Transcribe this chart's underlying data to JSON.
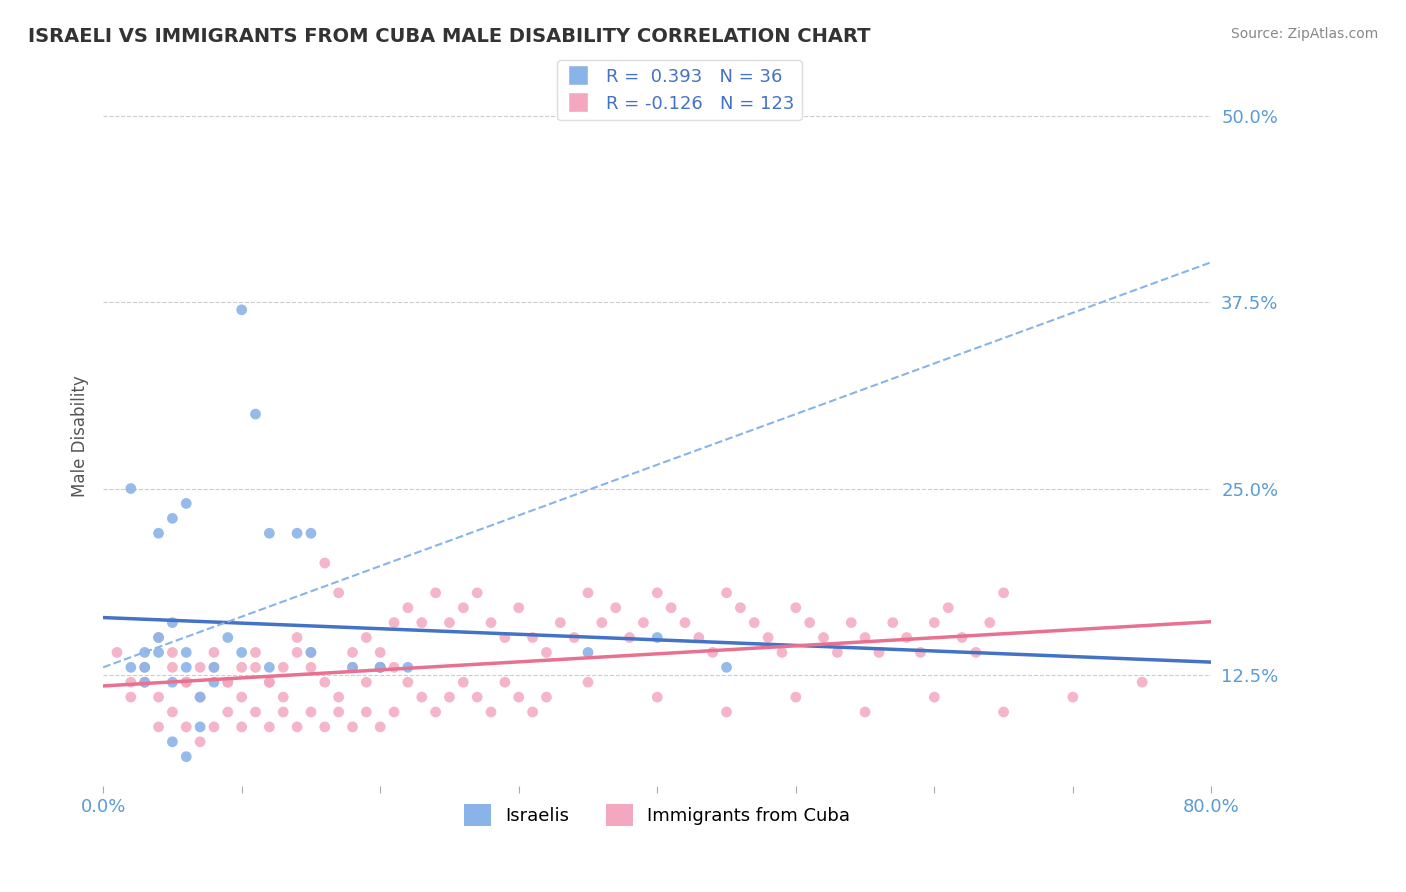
{
  "title": "ISRAELI VS IMMIGRANTS FROM CUBA MALE DISABILITY CORRELATION CHART",
  "source_text": "Source: ZipAtlas.com",
  "xlabel": "",
  "ylabel": "Male Disability",
  "legend_labels": [
    "Israelis",
    "Immigrants from Cuba"
  ],
  "r_israelis": 0.393,
  "n_israelis": 36,
  "r_cuba": -0.126,
  "n_cuba": 123,
  "color_israelis": "#8ab4e8",
  "color_cuba": "#f4a8c0",
  "line_color_israelis": "#4472c4",
  "line_color_cuba": "#e87090",
  "dashed_line_color": "#8ab4e8",
  "xlim": [
    0.0,
    0.8
  ],
  "ylim": [
    0.05,
    0.52
  ],
  "yticks": [
    0.125,
    0.25,
    0.375,
    0.5
  ],
  "ytick_labels": [
    "12.5%",
    "25.0%",
    "37.5%",
    "50.0%"
  ],
  "xticks": [
    0.0,
    0.1,
    0.2,
    0.3,
    0.4,
    0.5,
    0.6,
    0.7,
    0.8
  ],
  "xtick_labels": [
    "0.0%",
    "",
    "",
    "",
    "",
    "",
    "",
    "",
    "80.0%"
  ],
  "background_color": "#ffffff",
  "grid_color": "#cccccc",
  "title_color": "#333333",
  "axis_label_color": "#5b9bd5",
  "israelis_x": [
    0.02,
    0.03,
    0.04,
    0.05,
    0.06,
    0.07,
    0.08,
    0.02,
    0.03,
    0.04,
    0.05,
    0.06,
    0.03,
    0.04,
    0.05,
    0.06,
    0.07,
    0.08,
    0.09,
    0.1,
    0.12,
    0.14,
    0.15,
    0.2,
    0.22,
    0.1,
    0.11,
    0.12,
    0.15,
    0.18,
    0.2,
    0.35,
    0.4,
    0.45,
    0.05,
    0.06
  ],
  "israelis_y": [
    0.13,
    0.12,
    0.14,
    0.12,
    0.13,
    0.11,
    0.12,
    0.25,
    0.14,
    0.22,
    0.23,
    0.24,
    0.13,
    0.15,
    0.16,
    0.14,
    0.09,
    0.13,
    0.15,
    0.14,
    0.22,
    0.22,
    0.22,
    0.13,
    0.13,
    0.37,
    0.3,
    0.13,
    0.14,
    0.13,
    0.13,
    0.14,
    0.15,
    0.13,
    0.08,
    0.07
  ],
  "cuba_x": [
    0.01,
    0.02,
    0.03,
    0.04,
    0.05,
    0.06,
    0.07,
    0.08,
    0.09,
    0.1,
    0.11,
    0.12,
    0.13,
    0.14,
    0.15,
    0.16,
    0.17,
    0.18,
    0.19,
    0.2,
    0.21,
    0.22,
    0.23,
    0.24,
    0.25,
    0.26,
    0.27,
    0.28,
    0.29,
    0.3,
    0.31,
    0.32,
    0.33,
    0.34,
    0.35,
    0.36,
    0.37,
    0.38,
    0.39,
    0.4,
    0.41,
    0.42,
    0.43,
    0.44,
    0.45,
    0.46,
    0.47,
    0.48,
    0.49,
    0.5,
    0.51,
    0.52,
    0.53,
    0.54,
    0.55,
    0.56,
    0.57,
    0.58,
    0.59,
    0.6,
    0.61,
    0.62,
    0.63,
    0.64,
    0.65,
    0.02,
    0.03,
    0.04,
    0.05,
    0.06,
    0.07,
    0.08,
    0.09,
    0.1,
    0.11,
    0.12,
    0.13,
    0.14,
    0.15,
    0.16,
    0.17,
    0.18,
    0.19,
    0.2,
    0.21,
    0.22,
    0.23,
    0.24,
    0.25,
    0.26,
    0.27,
    0.28,
    0.29,
    0.3,
    0.31,
    0.32,
    0.35,
    0.4,
    0.45,
    0.5,
    0.55,
    0.6,
    0.65,
    0.7,
    0.75,
    0.04,
    0.05,
    0.06,
    0.07,
    0.08,
    0.09,
    0.1,
    0.11,
    0.12,
    0.13,
    0.14,
    0.15,
    0.16,
    0.17,
    0.18,
    0.19,
    0.2,
    0.21
  ],
  "cuba_y": [
    0.14,
    0.12,
    0.13,
    0.15,
    0.14,
    0.12,
    0.13,
    0.14,
    0.12,
    0.13,
    0.14,
    0.12,
    0.13,
    0.15,
    0.14,
    0.2,
    0.18,
    0.14,
    0.15,
    0.13,
    0.16,
    0.17,
    0.16,
    0.18,
    0.16,
    0.17,
    0.18,
    0.16,
    0.15,
    0.17,
    0.15,
    0.14,
    0.16,
    0.15,
    0.18,
    0.16,
    0.17,
    0.15,
    0.16,
    0.18,
    0.17,
    0.16,
    0.15,
    0.14,
    0.18,
    0.17,
    0.16,
    0.15,
    0.14,
    0.17,
    0.16,
    0.15,
    0.14,
    0.16,
    0.15,
    0.14,
    0.16,
    0.15,
    0.14,
    0.16,
    0.17,
    0.15,
    0.14,
    0.16,
    0.18,
    0.11,
    0.12,
    0.11,
    0.13,
    0.12,
    0.11,
    0.13,
    0.12,
    0.11,
    0.13,
    0.12,
    0.11,
    0.14,
    0.13,
    0.12,
    0.11,
    0.13,
    0.12,
    0.14,
    0.13,
    0.12,
    0.11,
    0.1,
    0.11,
    0.12,
    0.11,
    0.1,
    0.12,
    0.11,
    0.1,
    0.11,
    0.12,
    0.11,
    0.1,
    0.11,
    0.1,
    0.11,
    0.1,
    0.11,
    0.12,
    0.09,
    0.1,
    0.09,
    0.08,
    0.09,
    0.1,
    0.09,
    0.1,
    0.09,
    0.1,
    0.09,
    0.1,
    0.09,
    0.1,
    0.09,
    0.1,
    0.09,
    0.1
  ]
}
